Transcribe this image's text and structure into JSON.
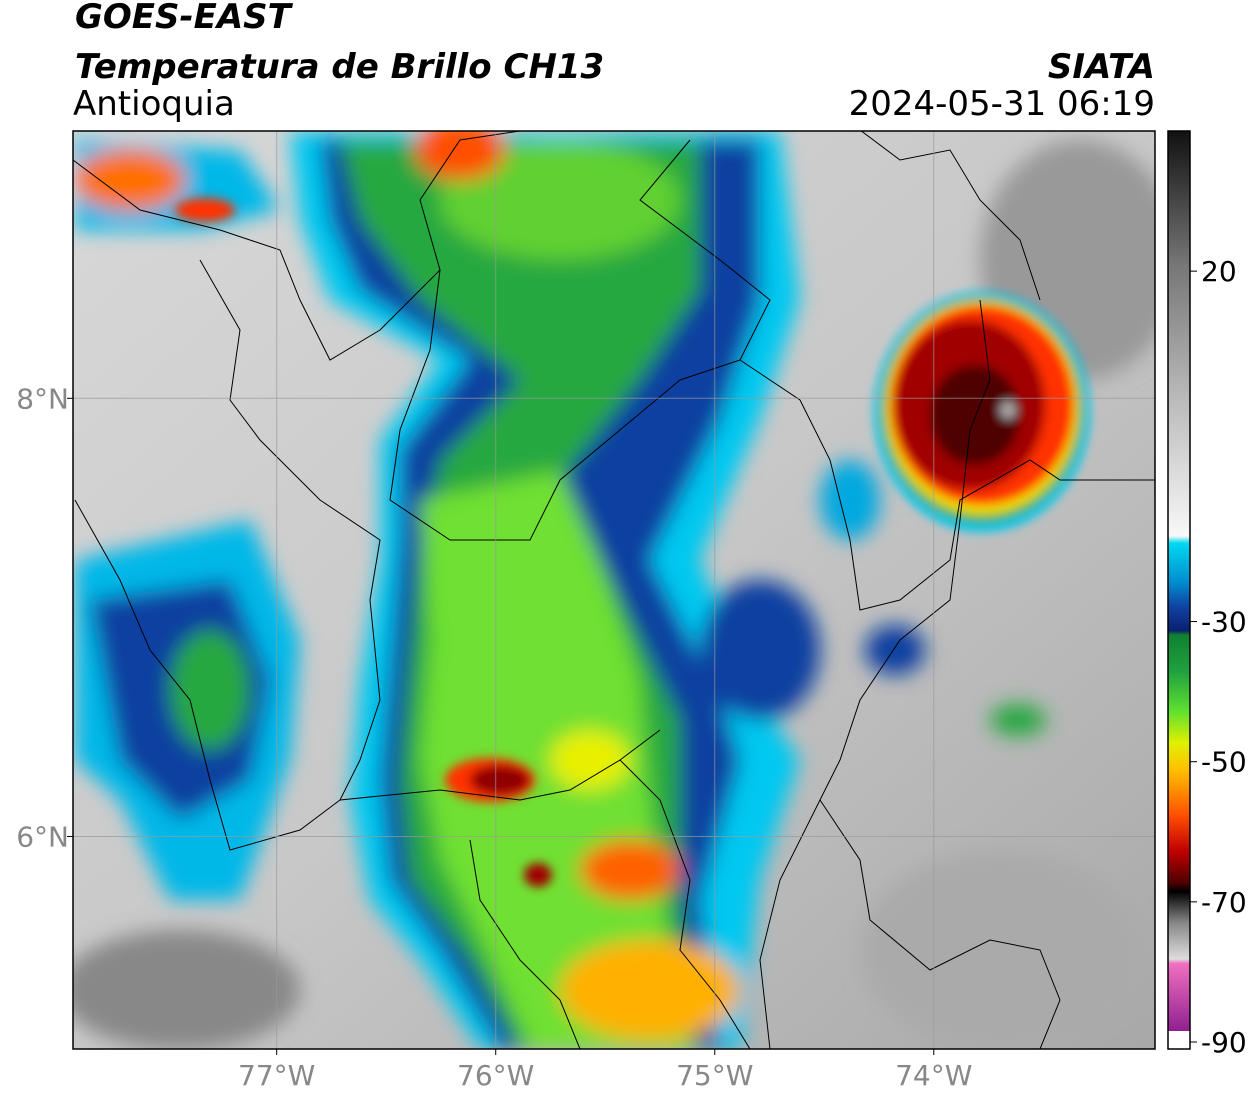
{
  "header": {
    "title": "GOES-EAST",
    "subtitle": "Temperatura de Brillo CH13",
    "region": "Antioquia",
    "source": "SIATA",
    "timestamp": "2024-05-31 06:19"
  },
  "map": {
    "xlim": [
      -77.93,
      -72.99
    ],
    "ylim": [
      5.03,
      9.22
    ],
    "xticks": [
      {
        "value": -77,
        "label": "77°W"
      },
      {
        "value": -76,
        "label": "76°W"
      },
      {
        "value": -75,
        "label": "75°W"
      },
      {
        "value": -74,
        "label": "74°W"
      }
    ],
    "yticks": [
      {
        "value": 8,
        "label": "8°N"
      },
      {
        "value": 6,
        "label": "6°N"
      }
    ],
    "grid": true
  },
  "colorbar": {
    "lim": [
      -91,
      40
    ],
    "ticks": [
      20,
      -30,
      -50,
      -70,
      -90
    ]
  }
}
